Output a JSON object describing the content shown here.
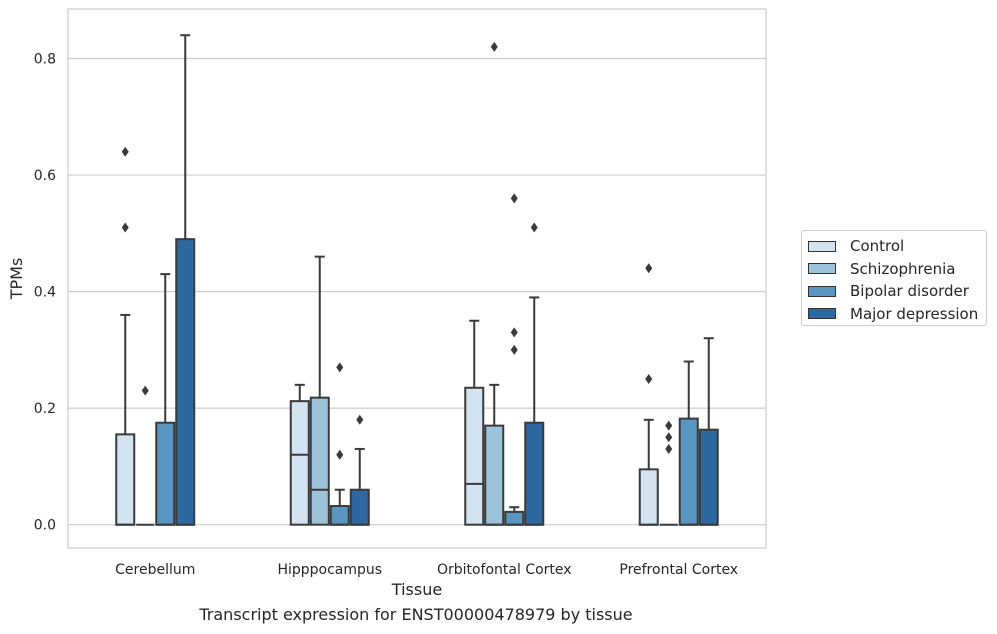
{
  "caption": "Transcript expression for ENST00000478979 by tissue",
  "chart_data": {
    "type": "box",
    "xlabel": "Tissue",
    "ylabel": "TPMs",
    "ylim": [
      -0.04,
      0.885
    ],
    "yticks": [
      0.0,
      0.2,
      0.4,
      0.6,
      0.8
    ],
    "ytick_labels": [
      "0.0",
      "0.2",
      "0.4",
      "0.6",
      "0.8"
    ],
    "grid": "horizontal",
    "legend_position": "right",
    "categories": [
      "Cerebellum",
      "Hipppocampus",
      "Orbitofontal Cortex",
      "Prefrontal Cortex"
    ],
    "series": [
      {
        "name": "Control",
        "color": "#d3e3f0",
        "boxes": [
          {
            "q1": 0.0,
            "median": 0.0,
            "q3": 0.155,
            "whisker_low": 0.0,
            "whisker_high": 0.36,
            "outliers": [
              0.51,
              0.64
            ]
          },
          {
            "q1": 0.0,
            "median": 0.12,
            "q3": 0.212,
            "whisker_low": 0.0,
            "whisker_high": 0.24,
            "outliers": []
          },
          {
            "q1": 0.0,
            "median": 0.07,
            "q3": 0.235,
            "whisker_low": 0.0,
            "whisker_high": 0.35,
            "outliers": []
          },
          {
            "q1": 0.0,
            "median": 0.0,
            "q3": 0.095,
            "whisker_low": 0.0,
            "whisker_high": 0.18,
            "outliers": [
              0.25,
              0.44
            ]
          }
        ]
      },
      {
        "name": "Schizophrenia",
        "color": "#9dc3db",
        "boxes": [
          {
            "q1": 0.0,
            "median": 0.0,
            "q3": 0.0,
            "whisker_low": 0.0,
            "whisker_high": 0.0,
            "outliers": [
              0.23
            ]
          },
          {
            "q1": 0.0,
            "median": 0.06,
            "q3": 0.218,
            "whisker_low": 0.0,
            "whisker_high": 0.46,
            "outliers": []
          },
          {
            "q1": 0.0,
            "median": 0.0,
            "q3": 0.17,
            "whisker_low": 0.0,
            "whisker_high": 0.24,
            "outliers": [
              0.82
            ]
          },
          {
            "q1": 0.0,
            "median": 0.0,
            "q3": 0.0,
            "whisker_low": 0.0,
            "whisker_high": 0.0,
            "outliers": [
              0.13,
              0.15,
              0.17
            ]
          }
        ]
      },
      {
        "name": "Bipolar disorder",
        "color": "#5996c2",
        "boxes": [
          {
            "q1": 0.0,
            "median": 0.0,
            "q3": 0.175,
            "whisker_low": 0.0,
            "whisker_high": 0.43,
            "outliers": []
          },
          {
            "q1": 0.0,
            "median": 0.0,
            "q3": 0.032,
            "whisker_low": 0.0,
            "whisker_high": 0.06,
            "outliers": [
              0.12,
              0.27
            ]
          },
          {
            "q1": 0.0,
            "median": 0.0,
            "q3": 0.022,
            "whisker_low": 0.0,
            "whisker_high": 0.03,
            "outliers": [
              0.3,
              0.33,
              0.56
            ]
          },
          {
            "q1": 0.0,
            "median": 0.0,
            "q3": 0.182,
            "whisker_low": 0.0,
            "whisker_high": 0.28,
            "outliers": []
          }
        ]
      },
      {
        "name": "Major depression",
        "color": "#2e68a1",
        "boxes": [
          {
            "q1": 0.0,
            "median": 0.0,
            "q3": 0.49,
            "whisker_low": 0.0,
            "whisker_high": 0.84,
            "outliers": []
          },
          {
            "q1": 0.0,
            "median": 0.0,
            "q3": 0.06,
            "whisker_low": 0.0,
            "whisker_high": 0.13,
            "outliers": [
              0.18
            ]
          },
          {
            "q1": 0.0,
            "median": 0.0,
            "q3": 0.175,
            "whisker_low": 0.0,
            "whisker_high": 0.39,
            "outliers": [
              0.51
            ]
          },
          {
            "q1": 0.0,
            "median": 0.0,
            "q3": 0.163,
            "whisker_low": 0.0,
            "whisker_high": 0.32,
            "outliers": []
          }
        ]
      }
    ]
  }
}
